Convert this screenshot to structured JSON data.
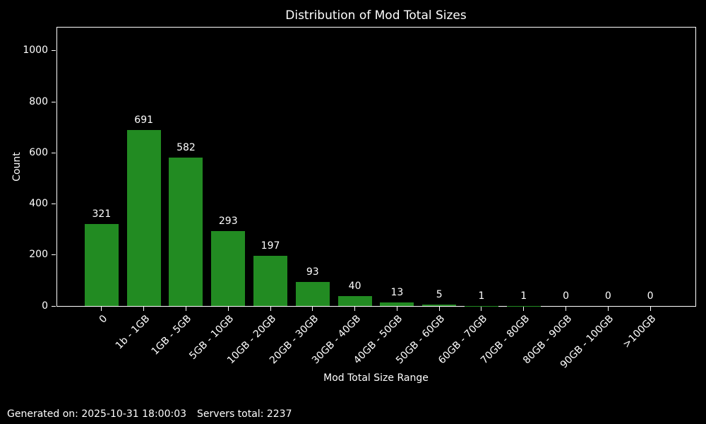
{
  "chart_data": {
    "type": "bar",
    "title": "Distribution of Mod Total Sizes",
    "xlabel": "Mod Total Size Range",
    "ylabel": "Count",
    "categories": [
      "0",
      "1b - 1GB",
      "1GB - 5GB",
      "5GB - 10GB",
      "10GB - 20GB",
      "20GB - 30GB",
      "30GB - 40GB",
      "40GB - 50GB",
      "50GB - 60GB",
      "60GB - 70GB",
      "70GB - 80GB",
      "80GB - 90GB",
      "90GB - 100GB",
      ">100GB"
    ],
    "values": [
      321,
      691,
      582,
      293,
      197,
      93,
      40,
      13,
      5,
      1,
      1,
      0,
      0,
      0
    ],
    "yticks": [
      0,
      200,
      400,
      600,
      800,
      1000
    ],
    "ylim": [
      0,
      1094
    ],
    "grid": false,
    "legend_position": "none",
    "bar_value_labels": true,
    "x_tick_rotation_deg": 45,
    "colors": {
      "bar": "#228B22",
      "background": "#000000",
      "text": "#ffffff",
      "axis": "#ffffff"
    }
  },
  "footer": {
    "generated_on": "Generated on: 2025-10-31 18:00:03",
    "servers_total": "Servers total: 2237"
  }
}
